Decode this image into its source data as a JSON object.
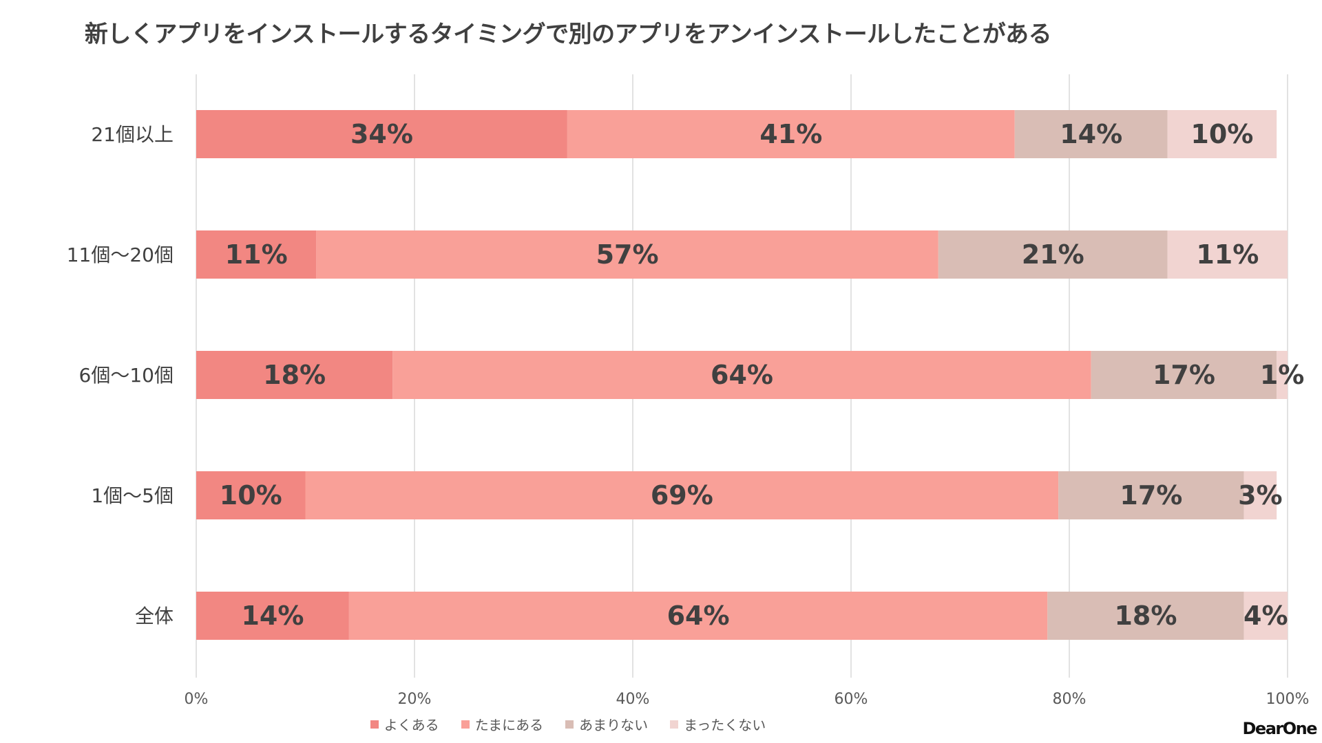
{
  "chart_data": {
    "type": "bar",
    "orientation": "horizontal",
    "stacked": true,
    "title": "新しくアプリをインストールするタイミングで別のアプリをアンインストールしたことがある",
    "categories": [
      "21個以上",
      "11個～20個",
      "6個～10個",
      "1個～5個",
      "全体"
    ],
    "series": [
      {
        "name": "よくある",
        "color": "#F28782",
        "values": [
          34,
          11,
          18,
          10,
          14
        ],
        "labels": [
          "34%",
          "11%",
          "18%",
          "10%",
          "14%"
        ]
      },
      {
        "name": "たまにある",
        "color": "#F9A098",
        "values": [
          41,
          57,
          64,
          69,
          64
        ],
        "labels": [
          "41%",
          "57%",
          "64%",
          "69%",
          "64%"
        ]
      },
      {
        "name": "あまりない",
        "color": "#D9BDB5",
        "values": [
          14,
          21,
          17,
          17,
          18
        ],
        "labels": [
          "14%",
          "21%",
          "17%",
          "17%",
          "18%"
        ]
      },
      {
        "name": "まったくない",
        "color": "#F1D4D1",
        "values": [
          10,
          11,
          1,
          3,
          4
        ],
        "labels": [
          "10%",
          "11%",
          "1%",
          "3%",
          "4%"
        ]
      }
    ],
    "xlim": [
      0,
      100
    ],
    "xticks": [
      "0%",
      "20%",
      "40%",
      "60%",
      "80%",
      "100%"
    ],
    "grid": true,
    "legend_position": "bottom"
  },
  "brand": "DearOne"
}
